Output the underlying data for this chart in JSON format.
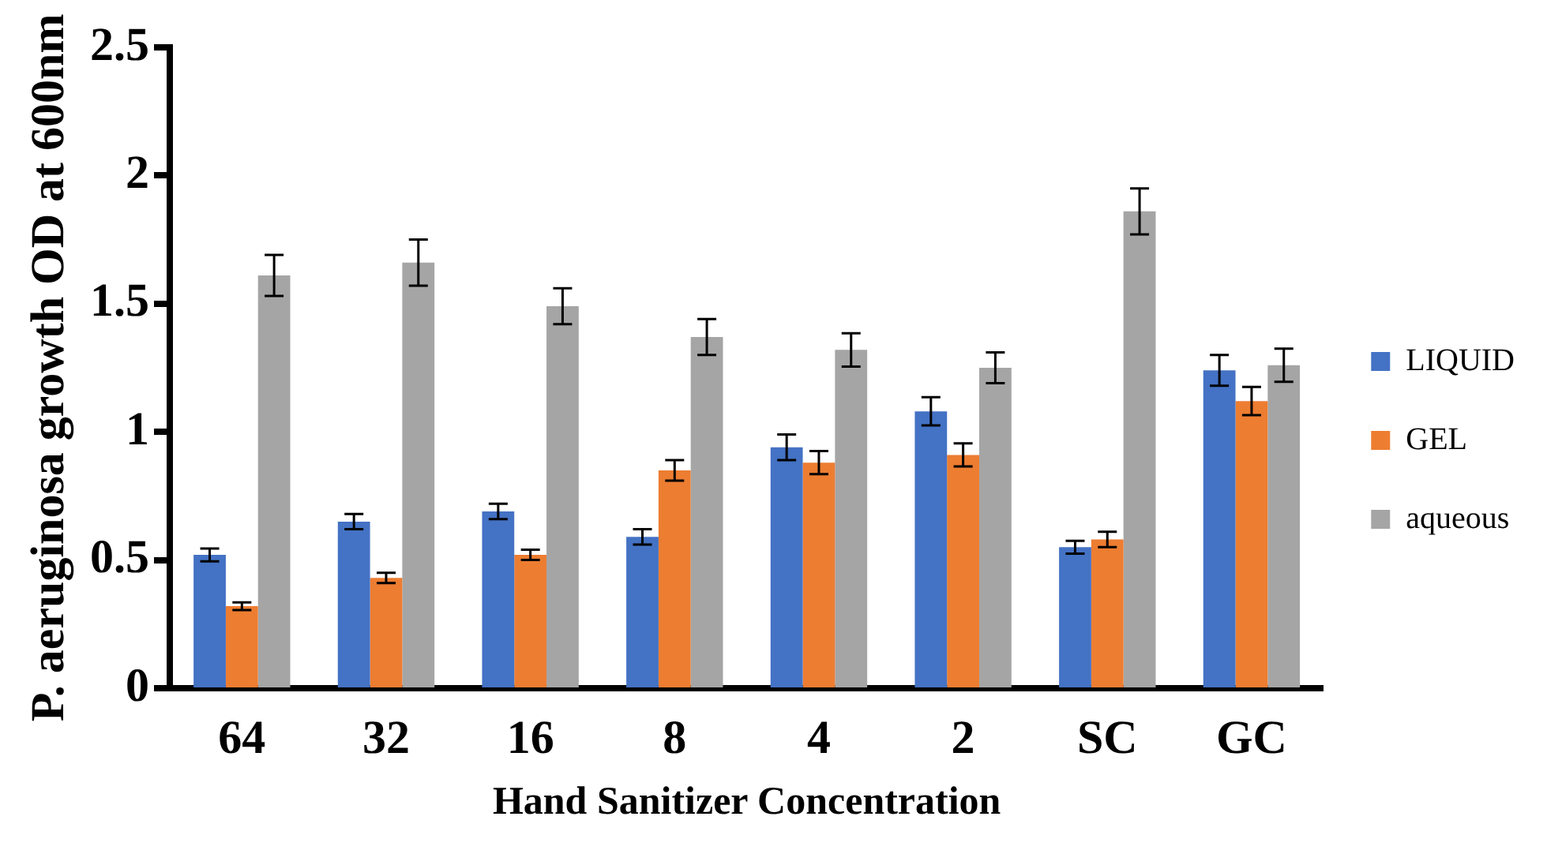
{
  "chart_data": {
    "type": "bar",
    "xlabel": "Hand Sanitizer Concentration",
    "ylabel": "P. aeruginosa growth OD at 600nm",
    "categories": [
      "64",
      "32",
      "16",
      "8",
      "4",
      "2",
      "SC",
      "GC"
    ],
    "series": [
      {
        "name": "LIQUID",
        "color": "#4472c4",
        "values": [
          0.52,
          0.65,
          0.69,
          0.59,
          0.94,
          1.08,
          0.55,
          1.24
        ],
        "errors": [
          0.025,
          0.03,
          0.03,
          0.03,
          0.05,
          0.055,
          0.025,
          0.06
        ]
      },
      {
        "name": "GEL",
        "color": "#ed7d31",
        "values": [
          0.32,
          0.43,
          0.52,
          0.85,
          0.88,
          0.91,
          0.58,
          1.12
        ],
        "errors": [
          0.015,
          0.02,
          0.02,
          0.04,
          0.045,
          0.045,
          0.03,
          0.055
        ]
      },
      {
        "name": "aqueous",
        "color": "#a5a5a5",
        "values": [
          1.61,
          1.66,
          1.49,
          1.37,
          1.32,
          1.25,
          1.86,
          1.26
        ],
        "errors": [
          0.08,
          0.09,
          0.07,
          0.07,
          0.065,
          0.06,
          0.09,
          0.065
        ]
      }
    ],
    "ylim": [
      0,
      2.5
    ],
    "yticks": [
      0,
      0.5,
      1,
      1.5,
      2,
      2.5
    ],
    "grid": false,
    "legend": "right"
  }
}
